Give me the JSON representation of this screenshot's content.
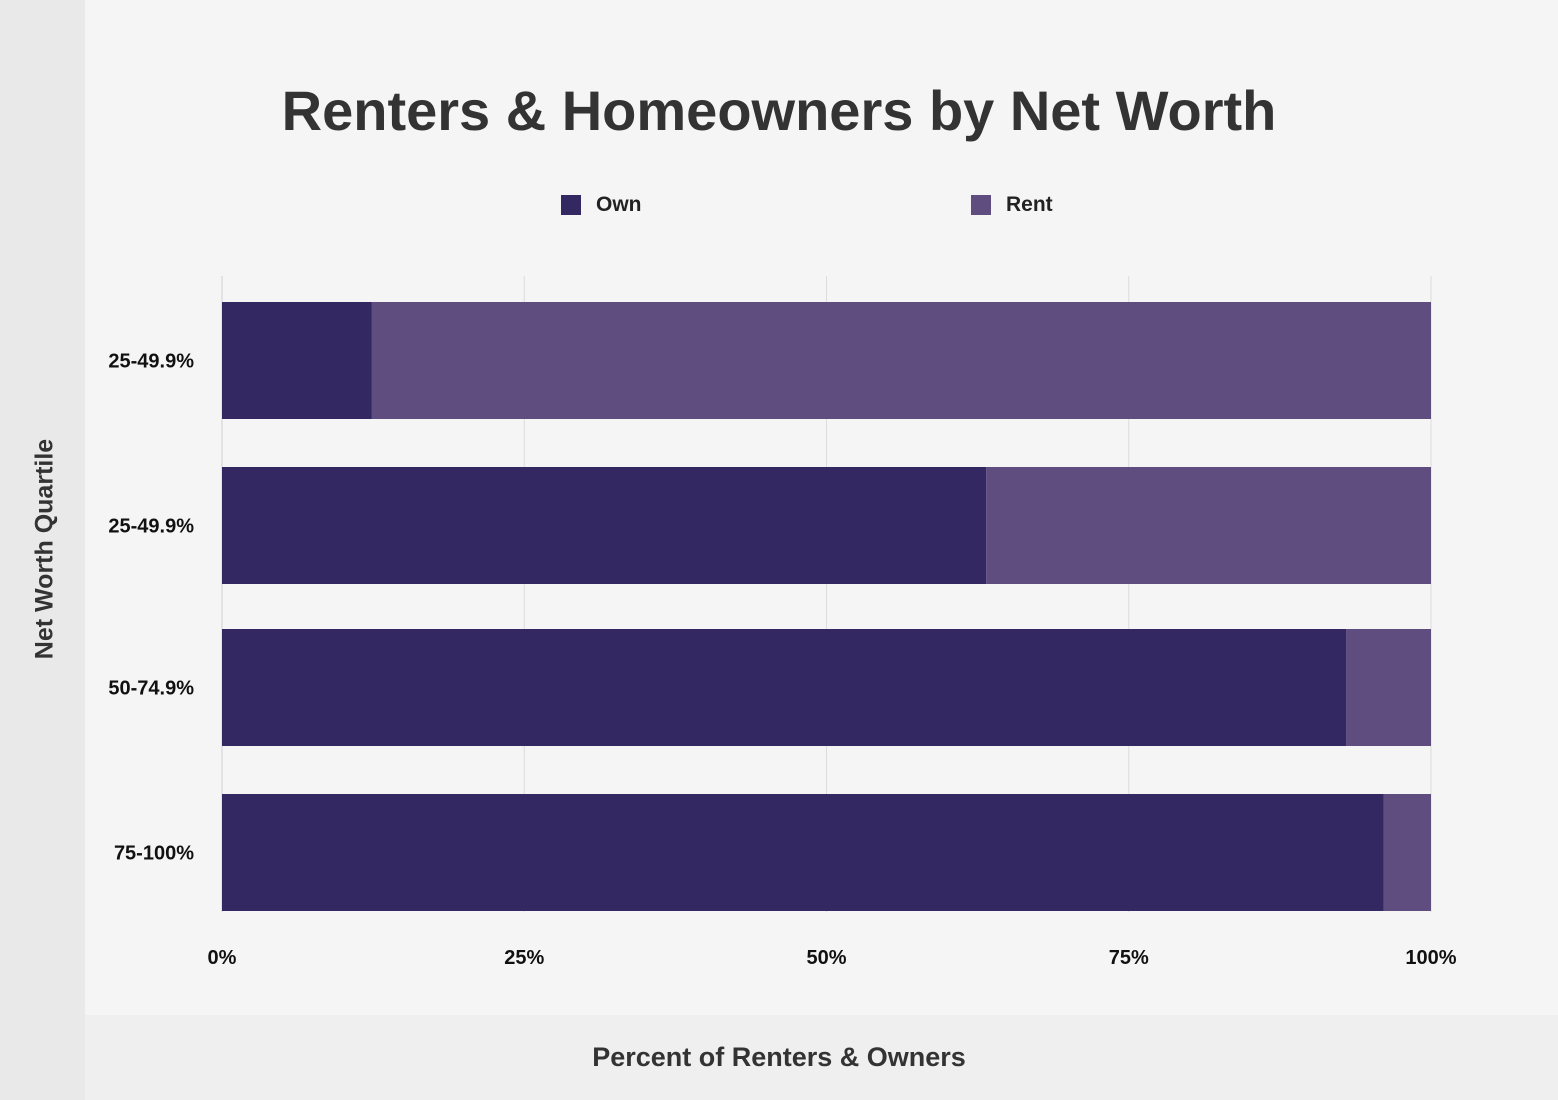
{
  "chart_data": {
    "type": "bar",
    "orientation": "horizontal",
    "stacked": true,
    "title": "Renters & Homeowners by Net Worth",
    "xlabel": "Percent of Renters & Owners",
    "ylabel": "Net Worth Quartile",
    "categories": [
      "25-49.9%",
      "25-49.9%",
      "50-74.9%",
      "75-100%"
    ],
    "series": [
      {
        "name": "Own",
        "color": "#332862",
        "values": [
          12.4,
          63.2,
          93,
          96.1
        ]
      },
      {
        "name": "Rent",
        "color": "#5f4d80",
        "values": [
          87.6,
          36.8,
          7,
          3.9
        ]
      }
    ],
    "xlim": [
      0,
      100
    ],
    "xticks": [
      "0%",
      "25%",
      "50%",
      "75%",
      "100%"
    ],
    "grid": "vertical",
    "legend_position": "top"
  }
}
